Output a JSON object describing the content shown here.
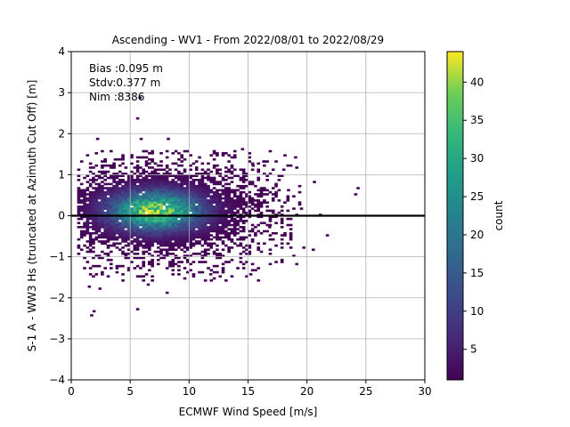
{
  "chart_data": {
    "type": "heatmap",
    "title": "Ascending - WV1 - From 2022/08/01 to 2022/08/29",
    "xlabel": "ECMWF Wind Speed [m/s]",
    "ylabel": "S-1 A - WW3 Hs (truncated at Azimuth Cut Off) [m]",
    "xlim": [
      0,
      30
    ],
    "ylim": [
      -4,
      4
    ],
    "xticks": [
      "0",
      "5",
      "10",
      "15",
      "20",
      "25",
      "30"
    ],
    "yticks": [
      "−4",
      "−3",
      "−2",
      "−1",
      "0",
      "1",
      "2",
      "3",
      "4"
    ],
    "grid": true,
    "colormap": "viridis",
    "colorbar": {
      "label": "count",
      "range": [
        1,
        44
      ],
      "ticks": [
        "5",
        "10",
        "15",
        "20",
        "25",
        "30",
        "35",
        "40"
      ]
    },
    "reference_line": {
      "y": 0,
      "color": "#000000"
    },
    "annotations": [
      "Bias :0.095 m",
      "Stdv:0.377 m",
      "Nim :8386"
    ],
    "stats": {
      "bias_m": 0.095,
      "stdv_m": 0.377,
      "n": 8386
    },
    "bin_size": {
      "x": 0.25,
      "y": 0.05
    },
    "density_centre": {
      "x": 7.0,
      "y": 0.1
    },
    "outlier_cells": [
      [
        5.5,
        2.35
      ],
      [
        5.7,
        2.85
      ],
      [
        5.8,
        1.85
      ],
      [
        6.0,
        1.55
      ],
      [
        8.1,
        1.85
      ],
      [
        2.1,
        1.85
      ],
      [
        5.0,
        1.45
      ],
      [
        3.6,
        1.35
      ],
      [
        14.4,
        1.6
      ],
      [
        18.9,
        1.4
      ],
      [
        15.3,
        1.2
      ],
      [
        20.5,
        0.8
      ],
      [
        24.2,
        0.65
      ],
      [
        24.0,
        0.5
      ],
      [
        21.0,
        0.0
      ],
      [
        21.6,
        -0.5
      ],
      [
        19.6,
        -0.8
      ],
      [
        20.4,
        -0.85
      ],
      [
        19.0,
        -1.2
      ],
      [
        15.1,
        -1.45
      ],
      [
        1.6,
        -2.45
      ],
      [
        1.8,
        -2.35
      ],
      [
        5.5,
        -2.3
      ],
      [
        8.0,
        -1.9
      ],
      [
        6.4,
        -1.7
      ],
      [
        1.4,
        -1.75
      ],
      [
        2.3,
        -1.8
      ],
      [
        3.0,
        -1.5
      ],
      [
        11.7,
        -1.45
      ],
      [
        16.7,
        -0.3
      ],
      [
        17.5,
        0.95
      ],
      [
        17.9,
        1.1
      ],
      [
        16.2,
        1.3
      ],
      [
        18.3,
        0.6
      ],
      [
        19.4,
        0.15
      ]
    ]
  }
}
